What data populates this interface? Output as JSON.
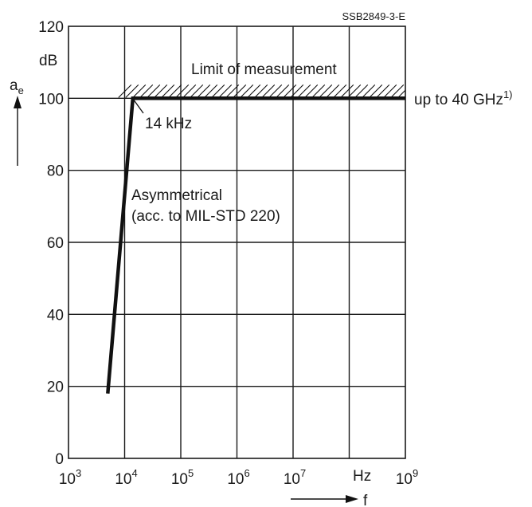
{
  "figure_code": "SSB2849-3-E",
  "chart_data": {
    "type": "line",
    "title": "",
    "x_scale": "log",
    "xlim": [
      1000,
      1000000000
    ],
    "ylim": [
      0,
      120
    ],
    "x_tick_values": [
      1000,
      10000,
      100000,
      1000000,
      10000000,
      1000000000
    ],
    "x_tick_labels": [
      {
        "base": "10",
        "exp": "3"
      },
      {
        "base": "10",
        "exp": "4"
      },
      {
        "base": "10",
        "exp": "5"
      },
      {
        "base": "10",
        "exp": "6"
      },
      {
        "base": "10",
        "exp": "7"
      },
      {
        "base": "10",
        "exp": "9"
      }
    ],
    "x_unit": "Hz",
    "xlabel": "f",
    "y_ticks": [
      0,
      20,
      40,
      60,
      80,
      100,
      120
    ],
    "y_unit": "dB",
    "ylabel": {
      "base": "a",
      "sub": "e"
    },
    "grid": true,
    "series": [
      {
        "points": [
          {
            "x": 5000,
            "y": 18
          },
          {
            "x": 14000,
            "y": 100
          },
          {
            "x": 1000000000,
            "y": 100
          }
        ]
      }
    ],
    "limit": {
      "y": 100,
      "label": "Limit of measurement",
      "hatched": true
    },
    "annotations": {
      "knee": "14 kHz",
      "right_prefix": "up to 40 GHz",
      "right_footnote": "1)",
      "series_label_line1": "Asymmetrical",
      "series_label_line2": "(acc. to MIL-STD 220)"
    }
  }
}
